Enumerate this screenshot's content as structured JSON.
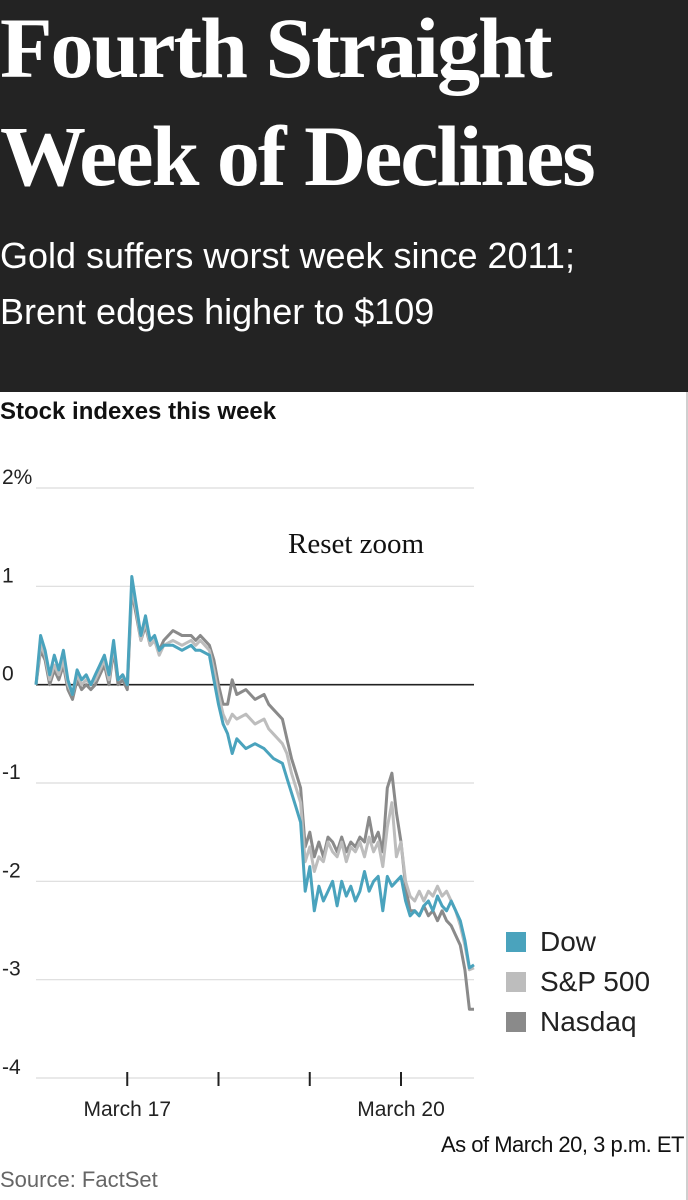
{
  "headline": {
    "line1": "Fourth Straight",
    "line2": "Week of Declines"
  },
  "subhead": {
    "line1": "Gold suffers worst week since 2011;",
    "line2": "Brent edges higher to $109"
  },
  "chart": {
    "reset_zoom_label": "Reset zoom",
    "as_of": "As of March 20, 3 p.m. ET",
    "source": "Source: FactSet"
  },
  "colors": {
    "dow": "#4aa3bd",
    "sp500": "#bdbdbd",
    "nasdaq": "#8a8a8a"
  },
  "chart_data": {
    "type": "line",
    "title": "Stock indexes this week",
    "xlabel": "",
    "ylabel": "%",
    "ylim": [
      -4,
      2
    ],
    "xlim": [
      0,
      4.8
    ],
    "yticks": [
      {
        "value": 2,
        "label": "2%"
      },
      {
        "value": 1,
        "label": "1"
      },
      {
        "value": 0,
        "label": "0"
      },
      {
        "value": -1,
        "label": "-1"
      },
      {
        "value": -2,
        "label": "-2"
      },
      {
        "value": -3,
        "label": "-3"
      },
      {
        "value": -4,
        "label": "-4"
      }
    ],
    "xtick_marks": [
      1,
      2,
      3,
      4
    ],
    "xtick_labels": [
      {
        "value": 1,
        "label": "March 17"
      },
      {
        "value": 4,
        "label": "March 20"
      }
    ],
    "series": [
      {
        "name": "Dow",
        "x": [
          0,
          0.05,
          0.1,
          0.15,
          0.2,
          0.25,
          0.3,
          0.35,
          0.4,
          0.45,
          0.5,
          0.55,
          0.6,
          0.65,
          0.7,
          0.75,
          0.8,
          0.85,
          0.9,
          0.95,
          1.0,
          1.05,
          1.1,
          1.15,
          1.2,
          1.25,
          1.3,
          1.35,
          1.4,
          1.5,
          1.6,
          1.7,
          1.75,
          1.8,
          1.9,
          1.95,
          2.0,
          2.05,
          2.1,
          2.15,
          2.2,
          2.3,
          2.4,
          2.5,
          2.55,
          2.6,
          2.7,
          2.75,
          2.8,
          2.85,
          2.9,
          2.95,
          3.0,
          3.05,
          3.1,
          3.15,
          3.2,
          3.25,
          3.3,
          3.35,
          3.4,
          3.45,
          3.5,
          3.55,
          3.6,
          3.65,
          3.7,
          3.75,
          3.8,
          3.85,
          3.9,
          3.95,
          4.0,
          4.05,
          4.1,
          4.15,
          4.2,
          4.25,
          4.3,
          4.35,
          4.4,
          4.45,
          4.5,
          4.55,
          4.6,
          4.65,
          4.7,
          4.75,
          4.8
        ],
        "values": [
          0.0,
          0.5,
          0.35,
          0.1,
          0.3,
          0.15,
          0.35,
          0.05,
          -0.1,
          0.15,
          0.05,
          0.1,
          0.0,
          0.1,
          0.2,
          0.3,
          0.1,
          0.45,
          0.05,
          0.1,
          0.0,
          1.1,
          0.8,
          0.5,
          0.7,
          0.45,
          0.5,
          0.35,
          0.4,
          0.4,
          0.35,
          0.4,
          0.35,
          0.35,
          0.3,
          0.05,
          -0.2,
          -0.4,
          -0.5,
          -0.7,
          -0.55,
          -0.65,
          -0.6,
          -0.65,
          -0.7,
          -0.75,
          -0.8,
          -0.95,
          -1.1,
          -1.25,
          -1.4,
          -2.1,
          -1.85,
          -2.3,
          -2.05,
          -2.2,
          -2.1,
          -2.0,
          -2.25,
          -2.0,
          -2.15,
          -2.05,
          -2.2,
          -2.1,
          -1.9,
          -2.1,
          -2.0,
          -1.95,
          -2.3,
          -1.95,
          -2.05,
          -2.0,
          -1.95,
          -2.2,
          -2.35,
          -2.3,
          -2.35,
          -2.25,
          -2.2,
          -2.3,
          -2.15,
          -2.25,
          -2.3,
          -2.2,
          -2.3,
          -2.4,
          -2.6,
          -2.88,
          -2.85
        ]
      },
      {
        "name": "S&P 500",
        "x": [
          0,
          0.05,
          0.1,
          0.15,
          0.2,
          0.25,
          0.3,
          0.35,
          0.4,
          0.45,
          0.5,
          0.55,
          0.6,
          0.65,
          0.7,
          0.75,
          0.8,
          0.85,
          0.9,
          0.95,
          1.0,
          1.05,
          1.1,
          1.15,
          1.2,
          1.25,
          1.3,
          1.35,
          1.4,
          1.5,
          1.6,
          1.7,
          1.75,
          1.8,
          1.9,
          1.95,
          2.0,
          2.05,
          2.1,
          2.15,
          2.2,
          2.3,
          2.4,
          2.5,
          2.55,
          2.6,
          2.7,
          2.75,
          2.8,
          2.85,
          2.9,
          2.95,
          3.0,
          3.05,
          3.1,
          3.15,
          3.2,
          3.25,
          3.3,
          3.35,
          3.4,
          3.45,
          3.5,
          3.55,
          3.6,
          3.65,
          3.7,
          3.75,
          3.8,
          3.85,
          3.9,
          3.95,
          4.0,
          4.05,
          4.1,
          4.15,
          4.2,
          4.25,
          4.3,
          4.35,
          4.4,
          4.45,
          4.5,
          4.55,
          4.6,
          4.65,
          4.7,
          4.75,
          4.8
        ],
        "values": [
          0.0,
          0.4,
          0.3,
          0.05,
          0.2,
          0.1,
          0.25,
          0.0,
          -0.1,
          0.1,
          0.0,
          0.05,
          0.0,
          0.05,
          0.15,
          0.25,
          0.05,
          0.4,
          0.05,
          0.1,
          0.0,
          1.0,
          0.75,
          0.45,
          0.65,
          0.4,
          0.45,
          0.3,
          0.4,
          0.45,
          0.4,
          0.45,
          0.4,
          0.45,
          0.35,
          0.15,
          -0.1,
          -0.3,
          -0.4,
          -0.3,
          -0.35,
          -0.3,
          -0.4,
          -0.35,
          -0.45,
          -0.5,
          -0.6,
          -0.7,
          -0.9,
          -1.05,
          -1.2,
          -1.8,
          -1.65,
          -1.9,
          -1.75,
          -1.8,
          -1.6,
          -1.7,
          -1.75,
          -1.6,
          -1.8,
          -1.65,
          -1.7,
          -1.6,
          -1.75,
          -1.55,
          -1.7,
          -1.6,
          -1.85,
          -1.45,
          -1.2,
          -1.75,
          -1.6,
          -2.0,
          -2.15,
          -2.2,
          -2.1,
          -2.2,
          -2.1,
          -2.15,
          -2.05,
          -2.15,
          -2.1,
          -2.2,
          -2.3,
          -2.45,
          -2.65,
          -2.9,
          -2.88
        ]
      },
      {
        "name": "Nasdaq",
        "x": [
          0,
          0.05,
          0.1,
          0.15,
          0.2,
          0.25,
          0.3,
          0.35,
          0.4,
          0.45,
          0.5,
          0.55,
          0.6,
          0.65,
          0.7,
          0.75,
          0.8,
          0.85,
          0.9,
          0.95,
          1.0,
          1.05,
          1.1,
          1.15,
          1.2,
          1.25,
          1.3,
          1.35,
          1.4,
          1.5,
          1.6,
          1.7,
          1.75,
          1.8,
          1.9,
          1.95,
          2.0,
          2.05,
          2.1,
          2.15,
          2.2,
          2.3,
          2.4,
          2.5,
          2.55,
          2.6,
          2.7,
          2.75,
          2.8,
          2.85,
          2.9,
          2.95,
          3.0,
          3.05,
          3.1,
          3.15,
          3.2,
          3.25,
          3.3,
          3.35,
          3.4,
          3.45,
          3.5,
          3.55,
          3.6,
          3.65,
          3.7,
          3.75,
          3.8,
          3.85,
          3.9,
          3.95,
          4.0,
          4.05,
          4.1,
          4.15,
          4.2,
          4.25,
          4.3,
          4.35,
          4.4,
          4.45,
          4.5,
          4.55,
          4.6,
          4.65,
          4.7,
          4.75,
          4.8
        ],
        "values": [
          0.0,
          0.35,
          0.25,
          0.0,
          0.15,
          0.05,
          0.2,
          -0.05,
          -0.15,
          0.05,
          -0.05,
          0.0,
          -0.05,
          0.0,
          0.1,
          0.2,
          0.0,
          0.35,
          0.0,
          0.05,
          -0.05,
          0.95,
          0.7,
          0.45,
          0.6,
          0.4,
          0.45,
          0.35,
          0.45,
          0.55,
          0.5,
          0.5,
          0.45,
          0.5,
          0.4,
          0.25,
          0.0,
          -0.2,
          -0.2,
          0.05,
          -0.1,
          -0.05,
          -0.15,
          -0.1,
          -0.2,
          -0.25,
          -0.35,
          -0.55,
          -0.75,
          -0.9,
          -1.05,
          -1.65,
          -1.5,
          -1.75,
          -1.6,
          -1.75,
          -1.55,
          -1.6,
          -1.7,
          -1.55,
          -1.7,
          -1.6,
          -1.65,
          -1.55,
          -1.6,
          -1.35,
          -1.6,
          -1.5,
          -1.7,
          -1.05,
          -0.9,
          -1.3,
          -1.6,
          -2.05,
          -2.3,
          -2.3,
          -2.35,
          -2.25,
          -2.35,
          -2.3,
          -2.4,
          -2.3,
          -2.4,
          -2.45,
          -2.55,
          -2.65,
          -2.9,
          -3.3,
          -3.3
        ]
      }
    ]
  }
}
